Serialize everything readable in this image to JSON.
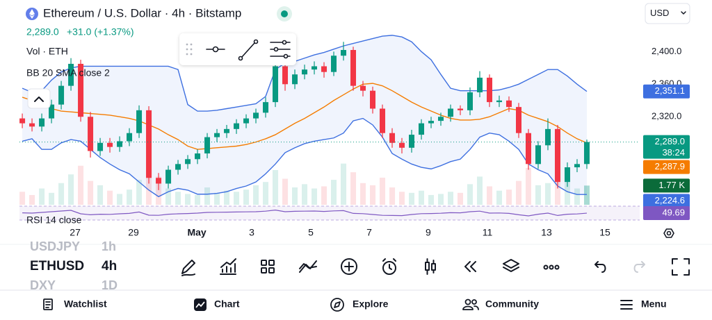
{
  "header": {
    "title": "Ethereum / U.S. Dollar · 4h · Bitstamp",
    "price": "2,289.0",
    "change": "+31.0 (+1.37%)",
    "currency": "USD"
  },
  "indicators": [
    "Vol · ETH",
    "BB 20 SMA close 2",
    "RSI 14 close"
  ],
  "chart_data": {
    "type": "candlestick",
    "open": [
      2318,
      2312,
      2308,
      2318,
      2335,
      2358,
      2385,
      2320,
      2278,
      2288,
      2283,
      2290,
      2300,
      2328,
      2245,
      2238,
      2255,
      2262,
      2268,
      2275,
      2295,
      2300,
      2305,
      2312,
      2318,
      2325,
      2338,
      2382,
      2360,
      2372,
      2378,
      2382,
      2375,
      2395,
      2402,
      2358,
      2352,
      2330,
      2300,
      2288,
      2282,
      2298,
      2312,
      2315,
      2320,
      2330,
      2328,
      2350,
      2368,
      2338,
      2340,
      2332,
      2300,
      2262,
      2285,
      2305,
      2240,
      2258,
      2262
    ],
    "high": [
      2324,
      2318,
      2324,
      2341,
      2364,
      2392,
      2390,
      2326,
      2294,
      2294,
      2296,
      2306,
      2334,
      2333,
      2251,
      2260,
      2267,
      2273,
      2280,
      2300,
      2305,
      2310,
      2317,
      2323,
      2330,
      2344,
      2388,
      2387,
      2378,
      2384,
      2388,
      2387,
      2400,
      2412,
      2406,
      2364,
      2357,
      2335,
      2306,
      2294,
      2304,
      2317,
      2320,
      2325,
      2335,
      2334,
      2356,
      2376,
      2372,
      2346,
      2345,
      2337,
      2305,
      2290,
      2318,
      2310,
      2264,
      2268,
      2292
    ],
    "low": [
      2306,
      2302,
      2302,
      2312,
      2329,
      2352,
      2314,
      2270,
      2272,
      2276,
      2277,
      2284,
      2294,
      2238,
      2230,
      2232,
      2249,
      2256,
      2262,
      2269,
      2289,
      2294,
      2299,
      2306,
      2312,
      2319,
      2332,
      2352,
      2354,
      2366,
      2372,
      2368,
      2370,
      2389,
      2352,
      2345,
      2324,
      2294,
      2282,
      2275,
      2276,
      2292,
      2306,
      2309,
      2314,
      2322,
      2322,
      2344,
      2332,
      2332,
      2326,
      2294,
      2255,
      2256,
      2279,
      2232,
      2234,
      2252,
      2256
    ],
    "close": [
      2312,
      2308,
      2318,
      2335,
      2358,
      2385,
      2320,
      2278,
      2288,
      2283,
      2290,
      2300,
      2328,
      2245,
      2238,
      2255,
      2262,
      2268,
      2275,
      2295,
      2300,
      2305,
      2312,
      2318,
      2325,
      2338,
      2382,
      2360,
      2372,
      2378,
      2382,
      2375,
      2395,
      2402,
      2358,
      2352,
      2330,
      2300,
      2288,
      2282,
      2298,
      2312,
      2315,
      2320,
      2330,
      2328,
      2350,
      2368,
      2338,
      2340,
      2332,
      2300,
      2262,
      2285,
      2305,
      2240,
      2258,
      2262,
      2289
    ],
    "bb_upper": [
      2355,
      2350,
      2352,
      2365,
      2375,
      2380,
      2382,
      2382,
      2382,
      2382,
      2382,
      2382,
      2382,
      2382,
      2382,
      2382,
      2378,
      2335,
      2327,
      2327,
      2328,
      2330,
      2332,
      2334,
      2336,
      2345,
      2378,
      2386,
      2388,
      2392,
      2396,
      2399,
      2403,
      2407,
      2410,
      2413,
      2416,
      2419,
      2420,
      2418,
      2412,
      2400,
      2390,
      2372,
      2355,
      2352,
      2352,
      2352,
      2352,
      2353,
      2356,
      2360,
      2366,
      2372,
      2378,
      2378,
      2370,
      2360,
      2351.1
    ],
    "bb_middle": [
      2344,
      2340,
      2335,
      2330,
      2327,
      2326,
      2325,
      2324,
      2323,
      2322,
      2320,
      2318,
      2315,
      2310,
      2305,
      2298,
      2292,
      2284,
      2280,
      2281,
      2282,
      2283,
      2284,
      2286,
      2289,
      2293,
      2298,
      2305,
      2312,
      2318,
      2325,
      2332,
      2340,
      2347,
      2354,
      2360,
      2361,
      2358,
      2352,
      2345,
      2338,
      2332,
      2327,
      2322,
      2318,
      2316,
      2316,
      2317,
      2320,
      2325,
      2330,
      2328,
      2322,
      2318,
      2314,
      2308,
      2300,
      2293,
      2287.9
    ],
    "bb_lower": [
      2290,
      2293,
      2280,
      2280,
      2288,
      2292,
      2290,
      2280,
      2270,
      2262,
      2255,
      2250,
      2240,
      2230,
      2222,
      2228,
      2232,
      2230,
      2225,
      2225,
      2226,
      2228,
      2232,
      2235,
      2240,
      2250,
      2262,
      2276,
      2282,
      2287,
      2290,
      2292,
      2294,
      2300,
      2315,
      2318,
      2310,
      2295,
      2275,
      2268,
      2262,
      2258,
      2256,
      2260,
      2265,
      2268,
      2280,
      2295,
      2300,
      2298,
      2290,
      2280,
      2262,
      2255,
      2250,
      2235,
      2228,
      2224.6,
      2224.6
    ],
    "volume": [
      1.2,
      0.9,
      1.5,
      1.1,
      2.0,
      2.8,
      3.6,
      2.2,
      1.8,
      1.3,
      1.0,
      1.4,
      2.3,
      3.9,
      2.6,
      1.5,
      1.2,
      1.0,
      0.9,
      1.6,
      1.1,
      1.3,
      1.2,
      1.4,
      1.8,
      2.1,
      3.2,
      2.4,
      1.6,
      1.9,
      1.5,
      1.7,
      2.3,
      3.8,
      3.0,
      2.0,
      1.8,
      2.5,
      1.6,
      1.2,
      1.1,
      1.3,
      0.9,
      1.0,
      1.2,
      1.1,
      1.9,
      2.6,
      1.7,
      1.3,
      1.4,
      2.2,
      3.4,
      1.8,
      2.0,
      3.1,
      2.4,
      1.5,
      1.77
    ],
    "rsi": [
      52,
      50,
      55,
      60,
      65,
      70,
      45,
      38,
      42,
      41,
      45,
      48,
      58,
      35,
      34,
      42,
      45,
      47,
      50,
      55,
      56,
      57,
      58,
      59,
      60,
      64,
      72,
      60,
      63,
      64,
      65,
      62,
      66,
      68,
      48,
      46,
      40,
      34,
      33,
      32,
      40,
      46,
      47,
      49,
      53,
      52,
      60,
      64,
      50,
      51,
      48,
      38,
      30,
      42,
      50,
      33,
      42,
      44,
      49.69
    ],
    "ylim": [
      2212,
      2425
    ],
    "yticks": [
      {
        "value": 2320,
        "label": "2,320.0"
      },
      {
        "value": 2360,
        "label": "2,360.0"
      },
      {
        "value": 2400,
        "label": "2,400.0"
      }
    ],
    "xlim": [
      -0.29,
      63.43
    ],
    "xticks": [
      {
        "value": 5.43,
        "label": "27"
      },
      {
        "value": 11.43,
        "label": "29"
      },
      {
        "value": 17.93,
        "label": "May"
      },
      {
        "value": 23.57,
        "label": "3"
      },
      {
        "value": 29.64,
        "label": "5"
      },
      {
        "value": 35.64,
        "label": "7"
      },
      {
        "value": 41.71,
        "label": "9"
      },
      {
        "value": 47.79,
        "label": "11"
      },
      {
        "value": 53.86,
        "label": "13"
      },
      {
        "value": 59.86,
        "label": "15"
      }
    ],
    "volume_lim": [
      0,
      16
    ],
    "rsi_lim": [
      0,
      100
    ],
    "up_color": "#089981",
    "down_color": "#f23645",
    "band_color": "#3d6fe0",
    "middle_color": "#f57c00",
    "rsi_color": "#7e57c2",
    "last_labels": {
      "close": "2,289.0",
      "countdown": "38:24",
      "bb_upper": "2,351.1",
      "bb_middle": "2,287.9",
      "volume": "1.77 K",
      "bb_lower": "2,224.6",
      "rsi": "49.69"
    }
  },
  "symbols": [
    {
      "ticker": "USDJPY",
      "interval": "1h"
    },
    {
      "ticker": "ETHUSD",
      "interval": "4h"
    },
    {
      "ticker": "DXY",
      "interval": "1D"
    }
  ],
  "nav": [
    "Watchlist",
    "Chart",
    "Explore",
    "Community",
    "Menu"
  ]
}
